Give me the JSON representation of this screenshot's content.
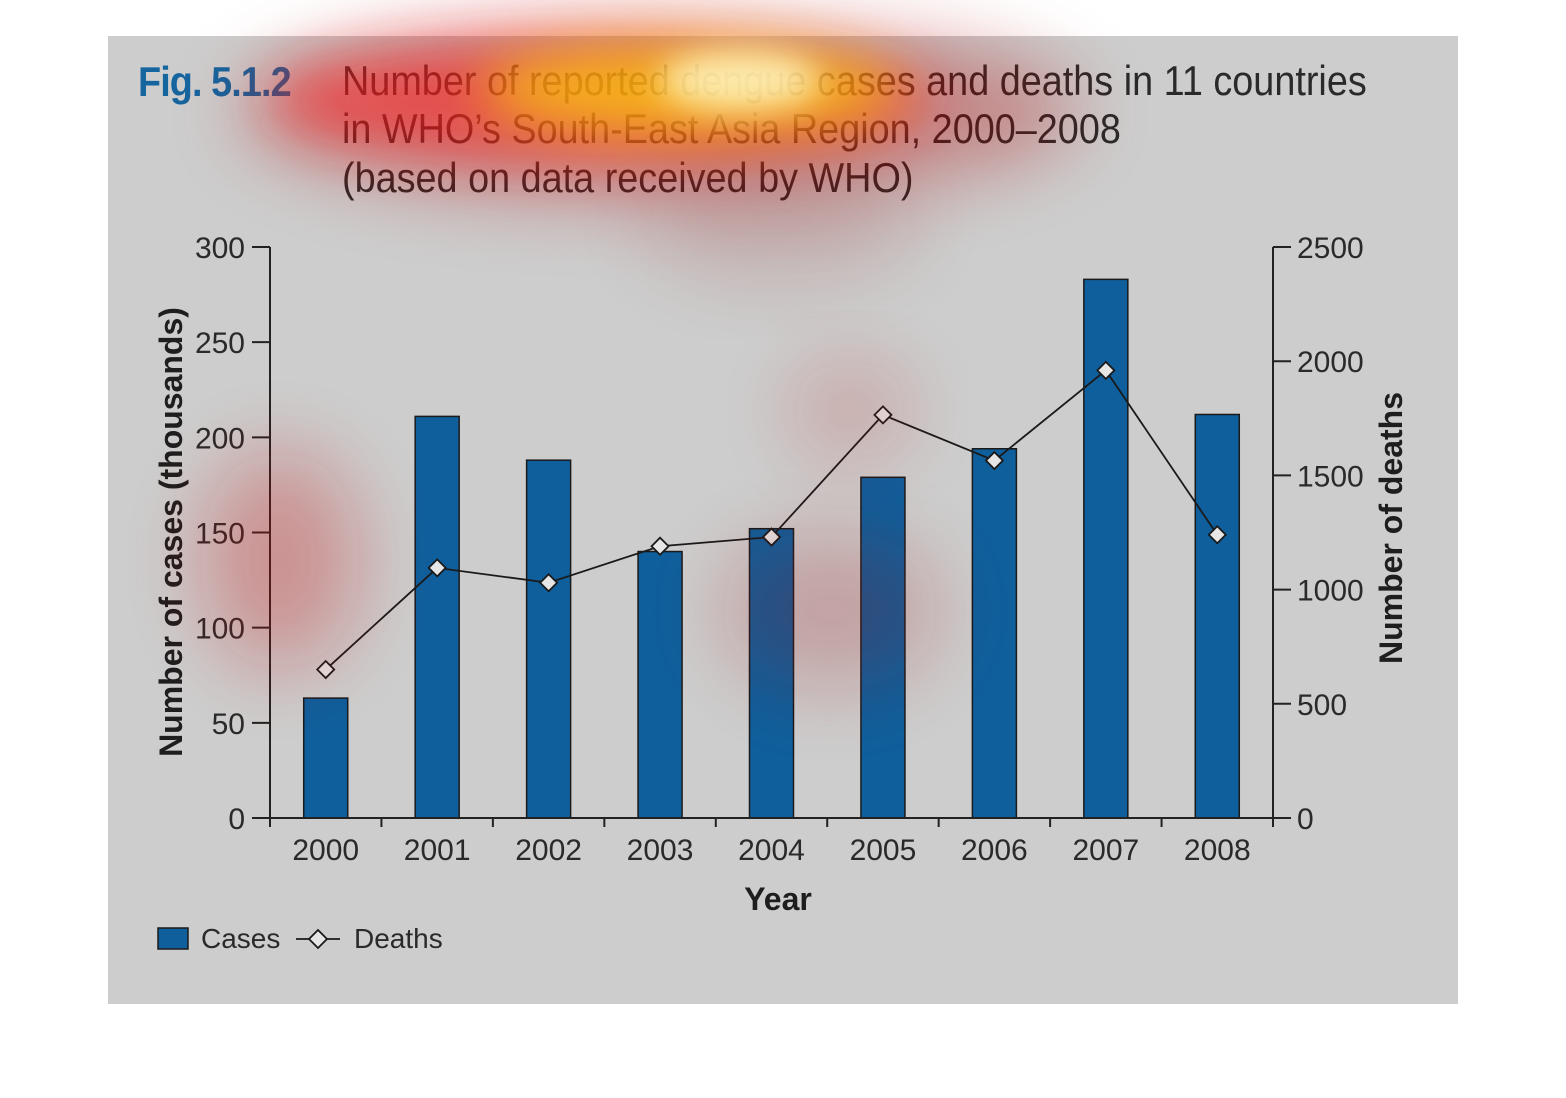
{
  "figure": {
    "label": "Fig. 5.1.2",
    "title_lines": [
      "Number of reported dengue cases and deaths in 11 countries",
      "in WHO’s South-East Asia Region, 2000–2008",
      "(based on data received by WHO)"
    ]
  },
  "chart_data": {
    "type": "bar",
    "categories": [
      "2000",
      "2001",
      "2002",
      "2003",
      "2004",
      "2005",
      "2006",
      "2007",
      "2008"
    ],
    "series": [
      {
        "name": "Cases",
        "type": "bar",
        "axis": "left",
        "values": [
          63,
          211,
          188,
          140,
          152,
          179,
          194,
          283,
          212
        ]
      },
      {
        "name": "Deaths",
        "type": "line",
        "axis": "right",
        "values": [
          650,
          1095,
          1030,
          1190,
          1230,
          1765,
          1565,
          1960,
          1240
        ]
      }
    ],
    "xlabel": "Year",
    "ylabel": "Number of cases (thousands)",
    "y2label": "Number of deaths",
    "ylim": [
      0,
      300
    ],
    "y2lim": [
      0,
      2500
    ],
    "yticks": [
      "0",
      "50",
      "100",
      "150",
      "200",
      "250",
      "300"
    ],
    "y2ticks": [
      "0",
      "500",
      "1000",
      "1500",
      "2000",
      "2500"
    ],
    "legend_position": "bottom-left",
    "grid": false,
    "colors": {
      "bar": "#0f5f9c",
      "line": "#1a1a1a",
      "marker_fill": "#e6e6e6",
      "background": "#cdcdcd"
    }
  }
}
